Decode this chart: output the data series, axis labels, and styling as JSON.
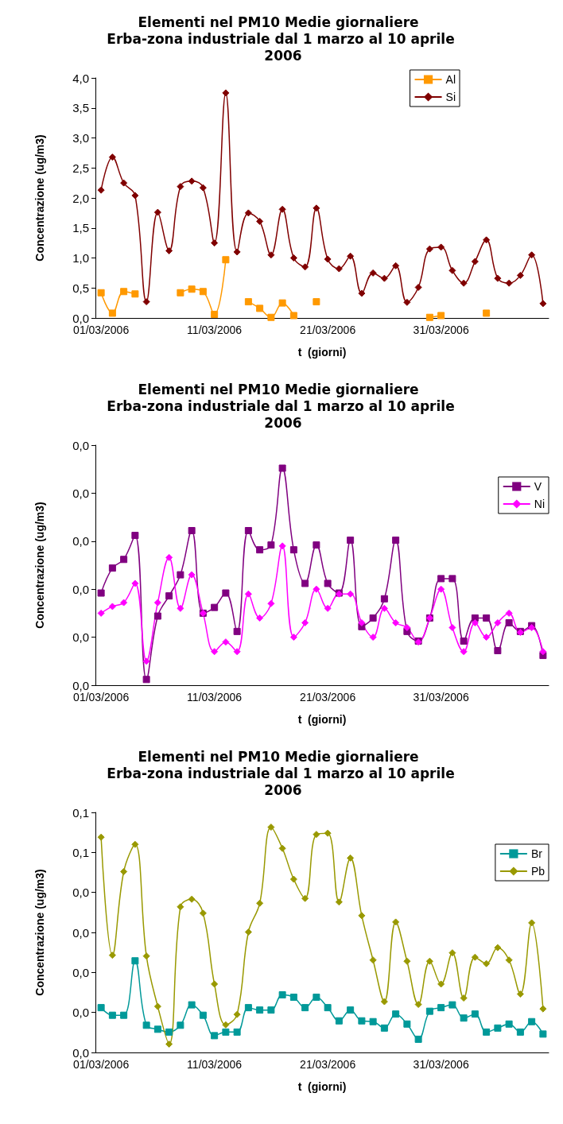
{
  "chart_data": [
    {
      "type": "line",
      "title": "Elementi nel PM10 Medie giornaliere Erba-zona industriale dal 1 marzo al 10 aprile 2006",
      "xlabel": "t  (giorni)",
      "ylabel": "Concentrazione (ug/m3)",
      "legend": "top right",
      "categories": [
        "01/03/2006",
        null,
        null,
        null,
        null,
        null,
        null,
        null,
        null,
        null,
        "11/03/2006",
        null,
        null,
        null,
        null,
        null,
        null,
        null,
        null,
        null,
        "21/03/2006",
        null,
        null,
        null,
        null,
        null,
        null,
        null,
        null,
        null,
        "31/03/2006",
        null,
        null,
        null,
        null,
        null,
        null,
        null,
        null,
        null
      ],
      "ylim": [
        0,
        4
      ],
      "yticks": [
        {
          "value": 0,
          "label": "0,0"
        },
        {
          "value": 0.5,
          "label": "0,5"
        },
        {
          "value": 1,
          "label": "1,0"
        },
        {
          "value": 1.5,
          "label": "1,5"
        },
        {
          "value": 2,
          "label": "2,0"
        },
        {
          "value": 2.5,
          "label": "2,5"
        },
        {
          "value": 3,
          "label": "3,0"
        },
        {
          "value": 3.5,
          "label": "3,5"
        },
        {
          "value": 4,
          "label": "4,0"
        }
      ],
      "series": [
        {
          "name": "Al",
          "color": "#ff9900",
          "marker": "square",
          "values": [
            0.42,
            0.08,
            0.44,
            0.4,
            null,
            null,
            null,
            0.42,
            0.48,
            0.44,
            0.06,
            0.97,
            null,
            0.27,
            0.16,
            0.01,
            0.25,
            0.04,
            null,
            0.27,
            null,
            null,
            null,
            null,
            null,
            null,
            null,
            null,
            null,
            0.01,
            0.04,
            null,
            null,
            null,
            0.08,
            null,
            null,
            null,
            null,
            null
          ]
        },
        {
          "name": "Si",
          "color": "#800000",
          "marker": "diamond",
          "values": [
            2.13,
            2.68,
            2.25,
            2.04,
            0.27,
            1.76,
            1.12,
            2.19,
            2.28,
            2.17,
            1.25,
            3.75,
            1.1,
            1.75,
            1.61,
            1.05,
            1.81,
            1.0,
            0.85,
            1.83,
            0.98,
            0.82,
            1.03,
            0.41,
            0.75,
            0.66,
            0.87,
            0.26,
            0.51,
            1.15,
            1.18,
            0.79,
            0.58,
            0.94,
            1.3,
            0.66,
            0.58,
            0.71,
            1.05,
            0.24
          ]
        }
      ]
    },
    {
      "type": "line",
      "title": "Elementi nel PM10 Medie giornaliere Erba-zona industriale dal 1 marzo al 10 aprile 2006",
      "xlabel": "t  (giorni)",
      "ylabel": "Concentrazione (ug/m3)",
      "legend": "right",
      "categories": [
        "01/03/2006",
        null,
        null,
        null,
        null,
        null,
        null,
        null,
        null,
        null,
        "11/03/2006",
        null,
        null,
        null,
        null,
        null,
        null,
        null,
        null,
        null,
        "21/03/2006",
        null,
        null,
        null,
        null,
        null,
        null,
        null,
        null,
        null,
        "31/03/2006",
        null,
        null,
        null,
        null,
        null,
        null,
        null,
        null,
        null
      ],
      "ylim": [
        0,
        0.025
      ],
      "yticks": [
        {
          "value": 0,
          "label": "0,0"
        },
        {
          "value": 0.005,
          "label": "0,0"
        },
        {
          "value": 0.01,
          "label": "0,0"
        },
        {
          "value": 0.015,
          "label": "0,0"
        },
        {
          "value": 0.02,
          "label": "0,0"
        },
        {
          "value": 0.025,
          "label": "0,0"
        }
      ],
      "series": [
        {
          "name": "V",
          "color": "#800080",
          "marker": "square",
          "values": [
            0.0096,
            0.0122,
            0.0131,
            0.0156,
            0.0006,
            0.0072,
            0.0093,
            0.0115,
            0.0161,
            0.0075,
            0.0081,
            0.0096,
            0.0056,
            0.0161,
            0.0141,
            0.0146,
            0.0226,
            0.0141,
            0.0106,
            0.0146,
            0.0106,
            0.0096,
            0.0151,
            0.0061,
            0.007,
            0.009,
            0.0151,
            0.0056,
            0.0046,
            0.007,
            0.0111,
            0.0111,
            0.0046,
            0.007,
            0.007,
            0.0036,
            0.0065,
            0.0056,
            0.0062,
            0.0031
          ]
        },
        {
          "name": "Ni",
          "color": "#ff00ff",
          "marker": "diamond",
          "values": [
            0.0075,
            0.0082,
            0.0086,
            0.0106,
            0.0025,
            0.0086,
            0.0133,
            0.008,
            0.0115,
            0.0075,
            0.0035,
            0.0045,
            0.0035,
            0.0095,
            0.007,
            0.0085,
            0.0145,
            0.005,
            0.0065,
            0.01,
            0.008,
            0.0095,
            0.0095,
            0.0065,
            0.005,
            0.008,
            0.0065,
            0.006,
            0.0045,
            0.007,
            0.01,
            0.006,
            0.0035,
            0.0065,
            0.005,
            0.0065,
            0.0075,
            0.0055,
            0.006,
            0.0035
          ]
        }
      ]
    },
    {
      "type": "line",
      "title": "Elementi nel PM10 Medie giornaliere Erba-zona industriale dal 1 marzo al 10 aprile 2006",
      "xlabel": "t  (giorni)",
      "ylabel": "Concentrazione (ug/m3)",
      "legend": "right",
      "categories": [
        "01/03/2006",
        null,
        null,
        null,
        null,
        null,
        null,
        null,
        null,
        null,
        "11/03/2006",
        null,
        null,
        null,
        null,
        null,
        null,
        null,
        null,
        null,
        "21/03/2006",
        null,
        null,
        null,
        null,
        null,
        null,
        null,
        null,
        null,
        "31/03/2006",
        null,
        null,
        null,
        null,
        null,
        null,
        null,
        null,
        null
      ],
      "ylim": [
        0,
        0.06
      ],
      "yticks": [
        {
          "value": 0,
          "label": "0,0"
        },
        {
          "value": 0.01,
          "label": "0,0"
        },
        {
          "value": 0.02,
          "label": "0,0"
        },
        {
          "value": 0.03,
          "label": "0,0"
        },
        {
          "value": 0.04,
          "label": "0,0"
        },
        {
          "value": 0.05,
          "label": "0,1"
        },
        {
          "value": 0.06,
          "label": "0,1"
        }
      ],
      "series": [
        {
          "name": "Br",
          "color": "#009999",
          "marker": "square",
          "values": [
            0.0112,
            0.0093,
            0.0093,
            0.0229,
            0.0068,
            0.0058,
            0.0051,
            0.0068,
            0.0119,
            0.0093,
            0.0042,
            0.0051,
            0.0051,
            0.0112,
            0.0106,
            0.0106,
            0.0144,
            0.0138,
            0.0112,
            0.0138,
            0.0112,
            0.0079,
            0.0106,
            0.0079,
            0.0077,
            0.0061,
            0.0096,
            0.0071,
            0.0033,
            0.0103,
            0.0112,
            0.0119,
            0.0086,
            0.0096,
            0.0051,
            0.0061,
            0.0071,
            0.0051,
            0.0077,
            0.0046
          ]
        },
        {
          "name": "Pb",
          "color": "#999900",
          "marker": "diamond",
          "values": [
            0.0538,
            0.0243,
            0.0452,
            0.052,
            0.0241,
            0.0115,
            0.0021,
            0.0364,
            0.0383,
            0.0348,
            0.0171,
            0.0069,
            0.0095,
            0.0301,
            0.0373,
            0.0563,
            0.051,
            0.0433,
            0.0385,
            0.0545,
            0.0548,
            0.0376,
            0.0486,
            0.0342,
            0.0231,
            0.0127,
            0.0326,
            0.0228,
            0.012,
            0.0228,
            0.0171,
            0.0249,
            0.0136,
            0.0238,
            0.0222,
            0.0262,
            0.0231,
            0.0146,
            0.0324,
            0.0109
          ]
        }
      ]
    }
  ]
}
